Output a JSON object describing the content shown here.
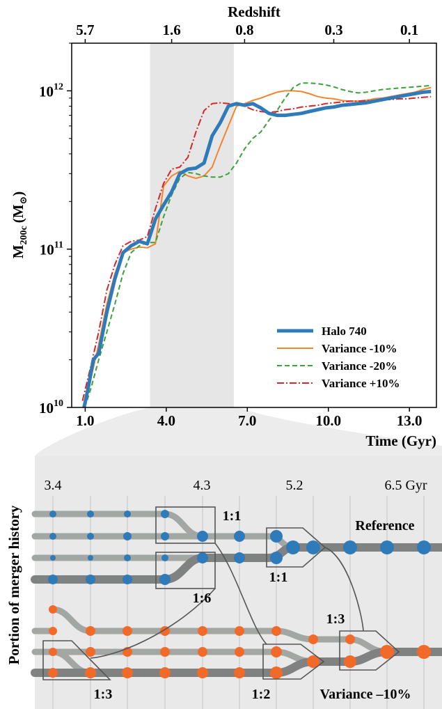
{
  "chart_data": [
    {
      "type": "line",
      "title": "",
      "xlabel": "Time (Gyr)",
      "ylabel": "M200c (M⊙)",
      "ylabel_main": "M",
      "ylabel_sub": "200c",
      "ylabel_unit": "(M",
      "ylabel_sun": "⊙",
      "ylabel_close": ")",
      "top_axis_label": "Redshift",
      "xlim": [
        0.5,
        14.0
      ],
      "ylim": [
        10000000000.0,
        2000000000000.0
      ],
      "yscale": "log",
      "xticks": [
        1.0,
        4.0,
        7.0,
        10.0,
        13.0
      ],
      "xtick_labels": [
        "1.0",
        "4.0",
        "7.0",
        "10.0",
        "13.0"
      ],
      "yticks": [
        10000000000.0,
        100000000000.0,
        1000000000000.0
      ],
      "ytick_base": "10",
      "ytick_exps": [
        "10",
        "11",
        "12"
      ],
      "top_ticks": [
        1.0,
        4.2,
        6.9,
        10.2,
        13.0
      ],
      "top_tick_labels": [
        "5.7",
        "1.6",
        "0.8",
        "0.3",
        "0.1"
      ],
      "shaded_region": [
        3.4,
        6.5
      ],
      "legend_position": "lower-right",
      "series": [
        {
          "name": "Halo 740",
          "color": "#2f7ab9",
          "style": "solid",
          "width": 5,
          "x": [
            0.9,
            1.1,
            1.3,
            1.5,
            1.8,
            2.1,
            2.4,
            2.7,
            3.0,
            3.3,
            3.6,
            3.9,
            4.2,
            4.5,
            4.8,
            5.1,
            5.4,
            5.7,
            6.0,
            6.3,
            6.6,
            6.9,
            7.2,
            7.5,
            7.8,
            8.1,
            8.4,
            8.7,
            9.0,
            9.3,
            9.6,
            9.9,
            10.2,
            10.5,
            10.8,
            11.1,
            11.4,
            11.7,
            12.0,
            12.3,
            12.6,
            12.9,
            13.2,
            13.5,
            13.8
          ],
          "y": [
            9000000000.0,
            13000000000.0,
            20000000000.0,
            22000000000.0,
            40000000000.0,
            65000000000.0,
            95000000000.0,
            105000000000.0,
            112000000000.0,
            108000000000.0,
            155000000000.0,
            190000000000.0,
            230000000000.0,
            300000000000.0,
            320000000000.0,
            325000000000.0,
            350000000000.0,
            520000000000.0,
            630000000000.0,
            800000000000.0,
            830000000000.0,
            810000000000.0,
            830000000000.0,
            780000000000.0,
            720000000000.0,
            700000000000.0,
            700000000000.0,
            710000000000.0,
            720000000000.0,
            740000000000.0,
            760000000000.0,
            780000000000.0,
            790000000000.0,
            810000000000.0,
            820000000000.0,
            830000000000.0,
            840000000000.0,
            860000000000.0,
            880000000000.0,
            900000000000.0,
            920000000000.0,
            940000000000.0,
            960000000000.0,
            980000000000.0,
            990000000000.0
          ]
        },
        {
          "name": "Variance -10%",
          "color": "#f4842c",
          "style": "solid",
          "width": 2,
          "x": [
            0.9,
            1.2,
            1.5,
            1.8,
            2.1,
            2.4,
            2.7,
            3.0,
            3.3,
            3.6,
            3.9,
            4.2,
            4.5,
            4.8,
            5.1,
            5.4,
            5.7,
            6.0,
            6.3,
            6.6,
            6.9,
            7.2,
            7.5,
            7.8,
            8.1,
            8.4,
            8.7,
            9.0,
            9.3,
            9.6,
            9.9,
            10.2,
            10.5,
            10.8,
            11.1,
            11.4,
            11.7,
            12.0,
            12.3,
            12.6,
            12.9,
            13.2,
            13.5,
            13.8
          ],
          "y": [
            9000000000.0,
            15000000000.0,
            25000000000.0,
            45000000000.0,
            70000000000.0,
            95000000000.0,
            100000000000.0,
            103000000000.0,
            102000000000.0,
            108000000000.0,
            250000000000.0,
            290000000000.0,
            310000000000.0,
            290000000000.0,
            280000000000.0,
            290000000000.0,
            330000000000.0,
            450000000000.0,
            600000000000.0,
            800000000000.0,
            830000000000.0,
            870000000000.0,
            900000000000.0,
            940000000000.0,
            980000000000.0,
            1000000000000.0,
            1000000000000.0,
            990000000000.0,
            960000000000.0,
            920000000000.0,
            900000000000.0,
            890000000000.0,
            870000000000.0,
            860000000000.0,
            860000000000.0,
            870000000000.0,
            890000000000.0,
            900000000000.0,
            920000000000.0,
            940000000000.0,
            960000000000.0,
            980000000000.0,
            1020000000000.0,
            1050000000000.0
          ]
        },
        {
          "name": "Variance -20%",
          "color": "#3ba13a",
          "style": "dashed",
          "width": 2,
          "x": [
            0.9,
            1.2,
            1.5,
            1.8,
            2.1,
            2.4,
            2.7,
            3.0,
            3.3,
            3.6,
            3.9,
            4.2,
            4.5,
            4.8,
            5.1,
            5.4,
            5.7,
            6.0,
            6.3,
            6.6,
            6.9,
            7.2,
            7.5,
            7.8,
            8.1,
            8.4,
            8.7,
            9.0,
            9.3,
            9.6,
            9.9,
            10.2,
            10.5,
            10.8,
            11.1,
            11.4,
            11.7,
            12.0,
            12.3,
            12.6,
            12.9,
            13.2,
            13.5,
            13.8
          ],
          "y": [
            9000000000.0,
            13000000000.0,
            20000000000.0,
            30000000000.0,
            45000000000.0,
            70000000000.0,
            95000000000.0,
            105000000000.0,
            110000000000.0,
            110000000000.0,
            160000000000.0,
            220000000000.0,
            280000000000.0,
            305000000000.0,
            300000000000.0,
            290000000000.0,
            285000000000.0,
            285000000000.0,
            300000000000.0,
            350000000000.0,
            430000000000.0,
            500000000000.0,
            550000000000.0,
            650000000000.0,
            750000000000.0,
            900000000000.0,
            1050000000000.0,
            1120000000000.0,
            1120000000000.0,
            1110000000000.0,
            1090000000000.0,
            1060000000000.0,
            1020000000000.0,
            990000000000.0,
            970000000000.0,
            980000000000.0,
            1000000000000.0,
            1020000000000.0,
            1030000000000.0,
            1040000000000.0,
            1050000000000.0,
            1060000000000.0,
            1070000000000.0,
            1080000000000.0
          ]
        },
        {
          "name": "Variance +10%",
          "color": "#d62728",
          "style": "dashdot",
          "width": 2,
          "x": [
            0.9,
            1.2,
            1.5,
            1.8,
            2.1,
            2.4,
            2.7,
            3.0,
            3.3,
            3.6,
            3.9,
            4.2,
            4.5,
            4.8,
            5.1,
            5.4,
            5.7,
            6.0,
            6.3,
            6.6,
            6.9,
            7.2,
            7.5,
            7.8,
            8.1,
            8.4,
            8.7,
            9.0,
            9.3,
            9.6,
            9.9,
            10.2,
            10.5,
            10.8,
            11.1,
            11.4,
            11.7,
            12.0,
            12.3,
            12.6,
            12.9,
            13.2,
            13.5,
            13.8
          ],
          "y": [
            11000000000.0,
            18000000000.0,
            30000000000.0,
            55000000000.0,
            80000000000.0,
            105000000000.0,
            112000000000.0,
            114000000000.0,
            120000000000.0,
            180000000000.0,
            260000000000.0,
            320000000000.0,
            330000000000.0,
            380000000000.0,
            550000000000.0,
            750000000000.0,
            830000000000.0,
            840000000000.0,
            830000000000.0,
            820000000000.0,
            800000000000.0,
            760000000000.0,
            740000000000.0,
            730000000000.0,
            740000000000.0,
            760000000000.0,
            770000000000.0,
            790000000000.0,
            800000000000.0,
            810000000000.0,
            830000000000.0,
            840000000000.0,
            850000000000.0,
            860000000000.0,
            860000000000.0,
            870000000000.0,
            870000000000.0,
            880000000000.0,
            880000000000.0,
            890000000000.0,
            890000000000.0,
            900000000000.0,
            910000000000.0,
            920000000000.0
          ]
        }
      ]
    },
    {
      "type": "diagram",
      "title": "Portion of merger history",
      "time_labels": [
        "3.4",
        "4.3",
        "5.2",
        "6.5 Gyr"
      ],
      "reference_label": "Reference",
      "variance_label": "Variance –10%",
      "reference_color": "#2f7ab9",
      "variance_color": "#f26a2a",
      "ratio_labels": {
        "ref_a": "1:1",
        "ref_b": "1:6",
        "ref_c": "1:1",
        "var_a": "1:3",
        "var_b": "1:2",
        "var_c": "1:3"
      }
    }
  ]
}
